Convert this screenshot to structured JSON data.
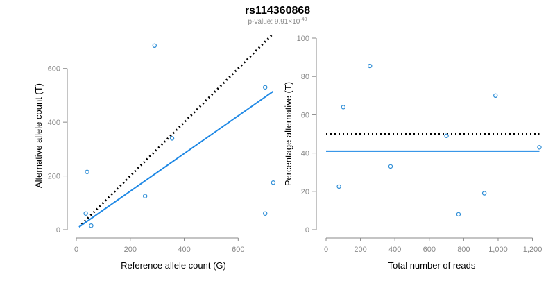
{
  "title": "rs114360868",
  "subtitle_prefix": "p-value: 9.91×10",
  "subtitle_exponent": "-40",
  "colors": {
    "points": "#2b8cd6",
    "fit": "#1e88e5",
    "reference": "#000000",
    "axis": "#888888",
    "text": "#000000",
    "subtitle": "#888888"
  },
  "chart_data": [
    {
      "type": "scatter",
      "xlabel": "Reference allele count (G)",
      "ylabel": "Alternative allele count (T)",
      "xlim": [
        0,
        720
      ],
      "ylim": [
        0,
        700
      ],
      "xticks": [
        0,
        200,
        400,
        600
      ],
      "xtick_labels": [
        "0",
        "200",
        "400",
        "600"
      ],
      "yticks": [
        0,
        200,
        400,
        600
      ],
      "ytick_labels": [
        "0",
        "200",
        "400",
        "600"
      ],
      "points": [
        {
          "x": 40,
          "y": 215
        },
        {
          "x": 35,
          "y": 60
        },
        {
          "x": 55,
          "y": 15
        },
        {
          "x": 290,
          "y": 685
        },
        {
          "x": 355,
          "y": 340
        },
        {
          "x": 255,
          "y": 125
        },
        {
          "x": 700,
          "y": 530
        },
        {
          "x": 700,
          "y": 60
        },
        {
          "x": 730,
          "y": 175
        }
      ],
      "fit_line": {
        "x": [
          10,
          730
        ],
        "y": [
          10,
          515
        ]
      },
      "reference_line": {
        "x": [
          20,
          730
        ],
        "y": [
          20,
          730
        ]
      }
    },
    {
      "type": "scatter",
      "xlabel": "Total number of reads",
      "ylabel": "Percentage alternative (T)",
      "xlim": [
        0,
        1230
      ],
      "ylim": [
        0,
        100
      ],
      "xticks": [
        0,
        200,
        400,
        600,
        800,
        1000,
        1200
      ],
      "xtick_labels": [
        "0",
        "200",
        "400",
        "600",
        "800",
        "1,000",
        "1,200"
      ],
      "yticks": [
        0,
        20,
        40,
        60,
        80,
        100
      ],
      "ytick_labels": [
        "0",
        "20",
        "40",
        "60",
        "80",
        "100"
      ],
      "points": [
        {
          "x": 75,
          "y": 22.5
        },
        {
          "x": 100,
          "y": 64
        },
        {
          "x": 255,
          "y": 85.5
        },
        {
          "x": 375,
          "y": 33
        },
        {
          "x": 700,
          "y": 49
        },
        {
          "x": 770,
          "y": 8
        },
        {
          "x": 920,
          "y": 19
        },
        {
          "x": 985,
          "y": 70
        },
        {
          "x": 1240,
          "y": 43
        }
      ],
      "fit_line": {
        "x": [
          0,
          1240
        ],
        "y": [
          41,
          41
        ]
      },
      "reference_line": {
        "x": [
          0,
          1240
        ],
        "y": [
          50,
          50
        ]
      }
    }
  ]
}
